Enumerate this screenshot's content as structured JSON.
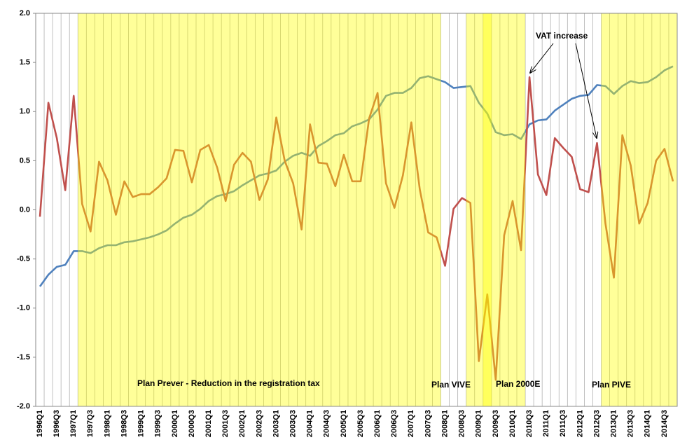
{
  "chart_data": {
    "type": "line",
    "categories": [
      "1996Q1",
      null,
      "1996Q3",
      null,
      "1997Q1",
      null,
      "1997Q3",
      null,
      "1998Q1",
      null,
      "1998Q3",
      null,
      "1999Q1",
      null,
      "1999Q3",
      null,
      "2000Q1",
      null,
      "2000Q3",
      null,
      "2001Q1",
      null,
      "2001Q3",
      null,
      "2002Q1",
      null,
      "2002Q3",
      null,
      "2003Q1",
      null,
      "2003Q3",
      null,
      "2004Q1",
      null,
      "2004Q3",
      null,
      "2005Q1",
      null,
      "2005Q3",
      null,
      "2006Q1",
      null,
      "2006Q3",
      null,
      "2007Q1",
      null,
      "2007Q3",
      null,
      "2008Q1",
      null,
      "2008Q3",
      null,
      "2009Q1",
      null,
      "2009Q3",
      null,
      "2010Q1",
      null,
      "2010Q3",
      null,
      "2011Q1",
      null,
      "2011Q3",
      null,
      "2012Q1",
      null,
      "2012Q3",
      null,
      "2013Q1",
      null,
      "2013Q3",
      null,
      "2014Q1",
      null,
      "2014Q3",
      null
    ],
    "series": [
      {
        "color": "#4f81bd",
        "values": [
          -0.78,
          -0.66,
          -0.58,
          -0.56,
          -0.42,
          -0.42,
          -0.44,
          -0.39,
          -0.36,
          -0.36,
          -0.33,
          -0.32,
          -0.3,
          -0.28,
          -0.25,
          -0.21,
          -0.14,
          -0.08,
          -0.05,
          0.01,
          0.09,
          0.14,
          0.16,
          0.19,
          0.25,
          0.3,
          0.35,
          0.37,
          0.4,
          0.49,
          0.55,
          0.58,
          0.55,
          0.65,
          0.7,
          0.76,
          0.78,
          0.85,
          0.88,
          0.92,
          1.02,
          1.16,
          1.19,
          1.19,
          1.24,
          1.34,
          1.36,
          1.33,
          1.3,
          1.24,
          1.25,
          1.26,
          1.09,
          0.98,
          0.79,
          0.76,
          0.77,
          0.72,
          0.87,
          0.91,
          0.92,
          1.01,
          1.07,
          1.13,
          1.16,
          1.17,
          1.27,
          1.26,
          1.18,
          1.26,
          1.31,
          1.29,
          1.3,
          1.35,
          1.42,
          1.46
        ]
      },
      {
        "color": "#c0504d",
        "values": [
          -0.07,
          1.09,
          0.73,
          0.2,
          1.16,
          0.06,
          -0.22,
          0.49,
          0.3,
          -0.05,
          0.29,
          0.13,
          0.16,
          0.16,
          0.23,
          0.32,
          0.61,
          0.6,
          0.28,
          0.61,
          0.66,
          0.43,
          0.09,
          0.46,
          0.58,
          0.49,
          0.1,
          0.31,
          0.94,
          0.5,
          0.27,
          -0.2,
          0.87,
          0.48,
          0.47,
          0.24,
          0.56,
          0.29,
          0.29,
          0.93,
          1.19,
          0.27,
          0.02,
          0.35,
          0.89,
          0.21,
          -0.23,
          -0.28,
          -0.57,
          0.01,
          0.12,
          0.07,
          -1.54,
          -0.86,
          -1.73,
          -0.26,
          0.09,
          -0.41,
          1.35,
          0.36,
          0.15,
          0.73,
          0.63,
          0.54,
          0.21,
          0.18,
          0.68,
          -0.14,
          -0.69,
          0.76,
          0.45,
          -0.14,
          0.07,
          0.5,
          0.62,
          0.29
        ]
      }
    ],
    "ylim": [
      -2,
      2
    ],
    "yticks": [
      {
        "value": -2,
        "label": "-2.0"
      },
      {
        "value": -1.5,
        "label": "-1.5"
      },
      {
        "value": -1,
        "label": "-1.0"
      },
      {
        "value": -0.5,
        "label": "-0.5"
      },
      {
        "value": 0,
        "label": "0.0"
      },
      {
        "value": 0.5,
        "label": "0.5"
      },
      {
        "value": 1,
        "label": "1.0"
      },
      {
        "value": 1.5,
        "label": "1.5"
      },
      {
        "value": 2,
        "label": "2.0"
      }
    ],
    "grid": true,
    "shade_color": "#ffff00",
    "periods": [
      {
        "label": "Plan Prever  - Reduction in the registration tax",
        "start": "1997Q2",
        "end": "2007Q4"
      },
      {
        "label": "Plan VIVE",
        "start": "2008Q4",
        "end": "2009Q2"
      },
      {
        "label": "Plan 2000E",
        "start": "2009Q2",
        "end": "2010Q2"
      },
      {
        "label": "Plan PIVE",
        "start": "2012Q4",
        "end": "2014Q4"
      }
    ],
    "annotation": "VAT increase"
  }
}
